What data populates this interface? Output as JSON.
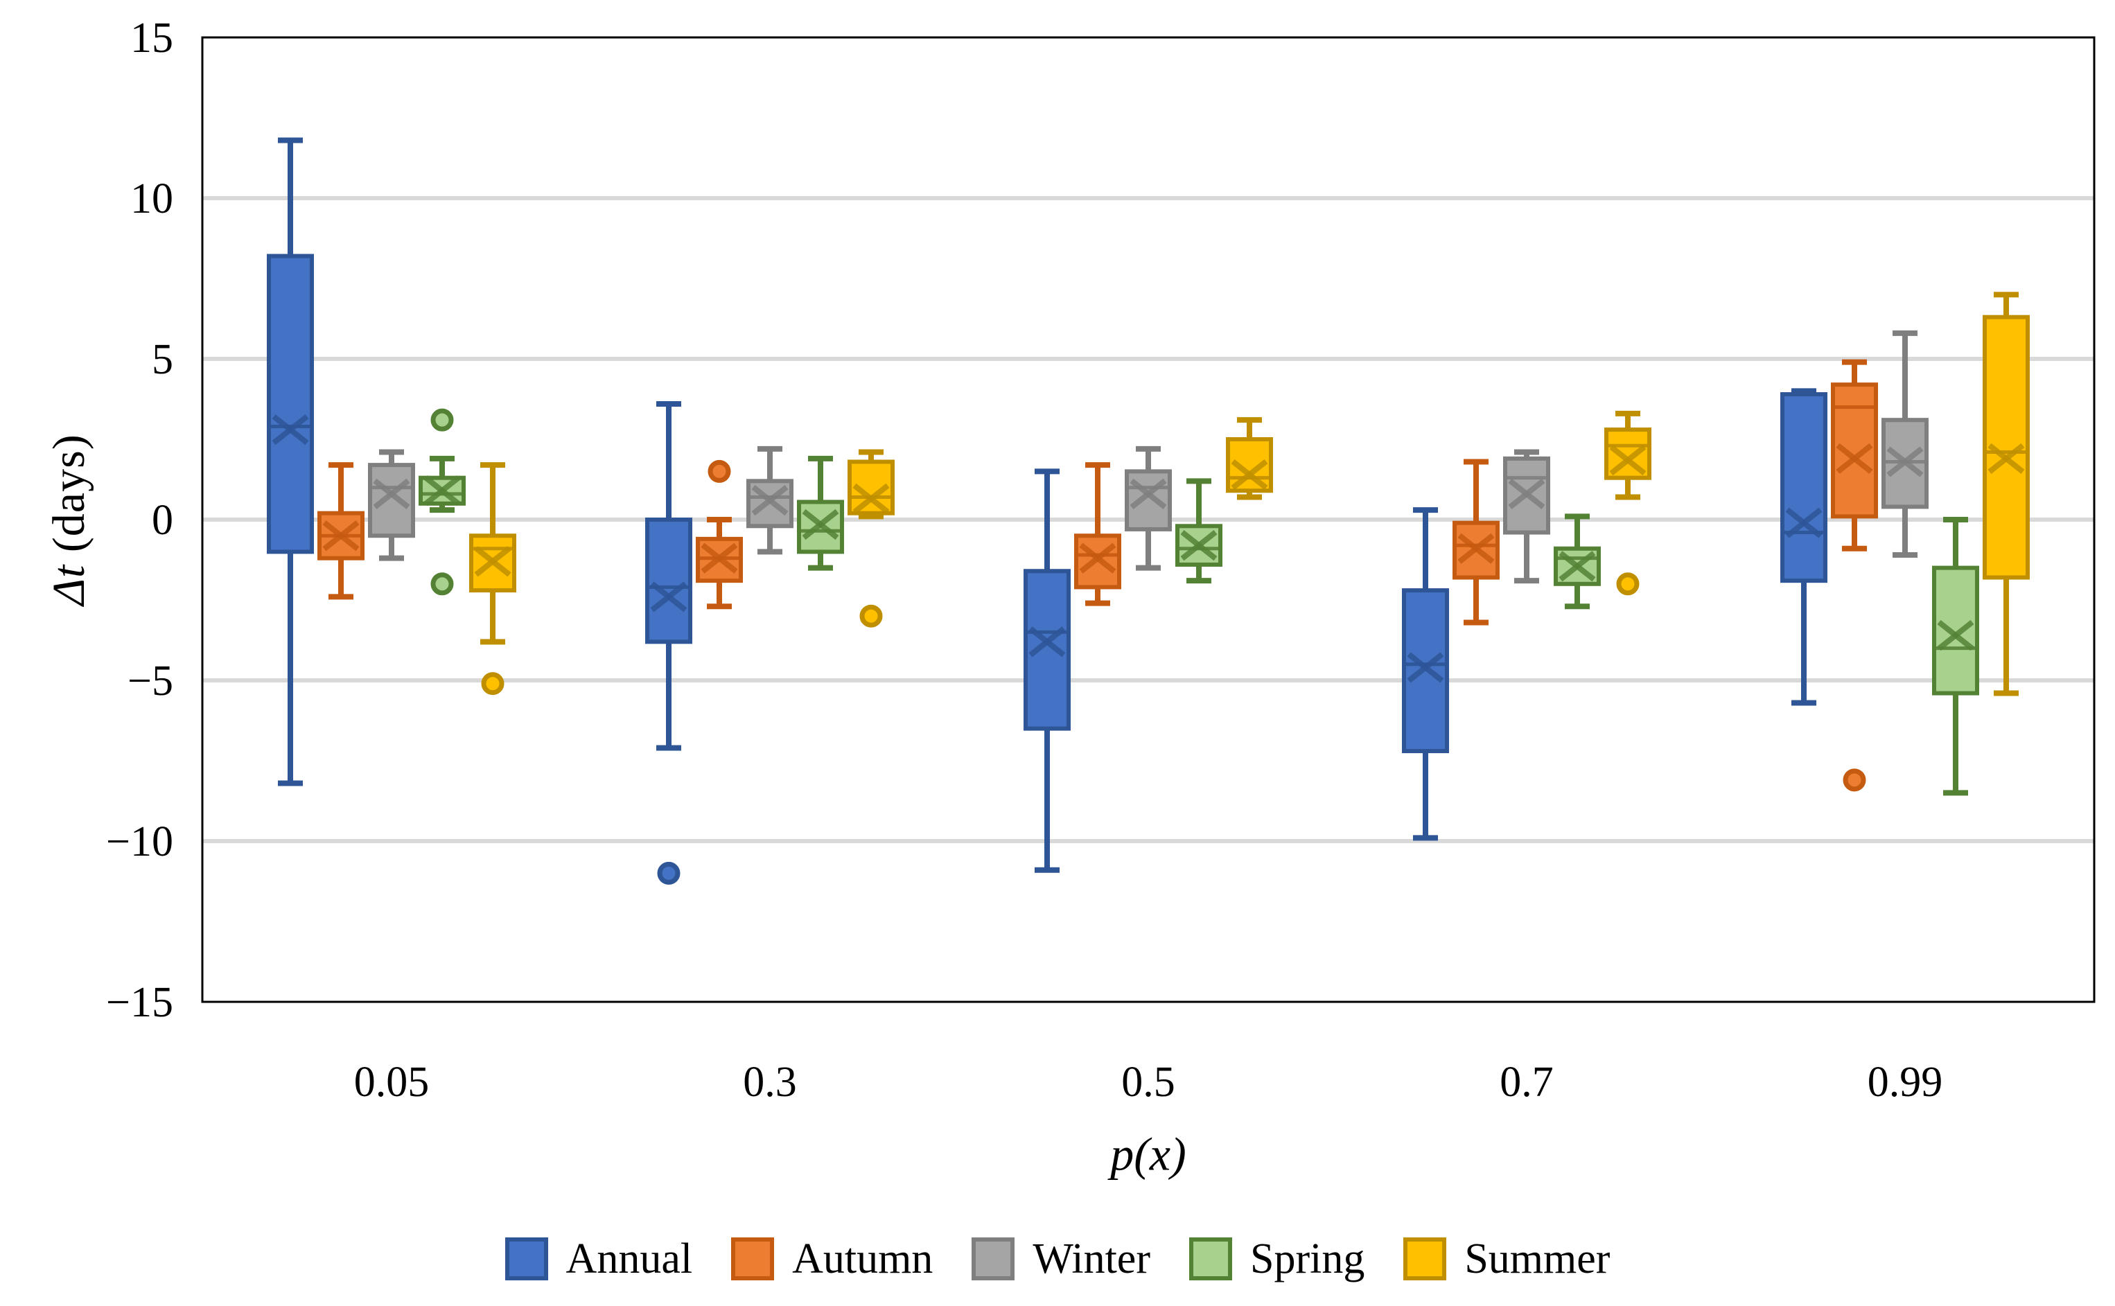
{
  "chart_data": {
    "type": "box",
    "title": "",
    "xlabel": "p(x)",
    "ylabel": "Δt (days)",
    "ylabel_parts": {
      "italic_part": "Δt",
      "rest_part": " (days)"
    },
    "ylim": [
      -15,
      15
    ],
    "yticks": [
      {
        "value": 15,
        "label": "15"
      },
      {
        "value": 10,
        "label": "10"
      },
      {
        "value": 5,
        "label": "5"
      },
      {
        "value": 0,
        "label": "0"
      },
      {
        "value": -5,
        "label": "−5"
      },
      {
        "value": -10,
        "label": "−10"
      },
      {
        "value": -15,
        "label": "−15"
      }
    ],
    "grid": "horizontal",
    "legend_position": "bottom",
    "categories": [
      "0.05",
      "0.3",
      "0.5",
      "0.7",
      "0.99"
    ],
    "colors": {
      "background": "#FFFFFF",
      "frame": "#000000",
      "gridline": "#D9D9D9",
      "text": "#000000"
    },
    "series": [
      {
        "name": "Annual",
        "fill": "#4472C4",
        "border": "#2E5596",
        "boxes": [
          {
            "whisker_low": -8.2,
            "q1": -1.0,
            "median": 2.9,
            "mean": 2.8,
            "q3": 8.2,
            "whisker_high": 11.8,
            "outliers": []
          },
          {
            "whisker_low": -7.1,
            "q1": -3.8,
            "median": -2.1,
            "mean": -2.4,
            "q3": 0.0,
            "whisker_high": 3.6,
            "outliers": [
              -11.0
            ]
          },
          {
            "whisker_low": -10.9,
            "q1": -6.5,
            "median": -3.5,
            "mean": -3.8,
            "q3": -1.6,
            "whisker_high": 1.5,
            "outliers": []
          },
          {
            "whisker_low": -9.9,
            "q1": -7.2,
            "median": -4.5,
            "mean": -4.6,
            "q3": -2.2,
            "whisker_high": 0.3,
            "outliers": []
          },
          {
            "whisker_low": -5.7,
            "q1": -1.9,
            "median": -0.4,
            "mean": -0.1,
            "q3": 3.9,
            "whisker_high": 4.0,
            "outliers": []
          }
        ]
      },
      {
        "name": "Autumn",
        "fill": "#ED7D31",
        "border": "#C55A11",
        "boxes": [
          {
            "whisker_low": -2.4,
            "q1": -1.2,
            "median": -0.5,
            "mean": -0.5,
            "q3": 0.2,
            "whisker_high": 1.7,
            "outliers": []
          },
          {
            "whisker_low": -2.7,
            "q1": -1.9,
            "median": -1.2,
            "mean": -1.2,
            "q3": -0.6,
            "whisker_high": 0.0,
            "outliers": [
              1.5
            ]
          },
          {
            "whisker_low": -2.6,
            "q1": -2.1,
            "median": -1.1,
            "mean": -1.2,
            "q3": -0.5,
            "whisker_high": 1.7,
            "outliers": []
          },
          {
            "whisker_low": -3.2,
            "q1": -1.8,
            "median": -0.8,
            "mean": -0.9,
            "q3": -0.1,
            "whisker_high": 1.8,
            "outliers": []
          },
          {
            "whisker_low": -0.9,
            "q1": 0.1,
            "median": 3.5,
            "mean": 1.9,
            "q3": 4.2,
            "whisker_high": 4.9,
            "outliers": [
              -8.1
            ]
          }
        ]
      },
      {
        "name": "Winter",
        "fill": "#A5A5A5",
        "border": "#7F7F7F",
        "boxes": [
          {
            "whisker_low": -1.2,
            "q1": -0.5,
            "median": 1.0,
            "mean": 0.8,
            "q3": 1.7,
            "whisker_high": 2.1,
            "outliers": []
          },
          {
            "whisker_low": -1.0,
            "q1": -0.2,
            "median": 0.7,
            "mean": 0.6,
            "q3": 1.2,
            "whisker_high": 2.2,
            "outliers": []
          },
          {
            "whisker_low": -1.5,
            "q1": -0.3,
            "median": 1.0,
            "mean": 0.8,
            "q3": 1.5,
            "whisker_high": 2.2,
            "outliers": []
          },
          {
            "whisker_low": -1.9,
            "q1": -0.4,
            "median": 1.3,
            "mean": 0.8,
            "q3": 1.9,
            "whisker_high": 2.1,
            "outliers": []
          },
          {
            "whisker_low": -1.1,
            "q1": 0.4,
            "median": 1.8,
            "mean": 1.8,
            "q3": 3.1,
            "whisker_high": 5.8,
            "outliers": []
          }
        ]
      },
      {
        "name": "Spring",
        "fill": "#A9D18E",
        "border": "#548235",
        "boxes": [
          {
            "whisker_low": 0.3,
            "q1": 0.5,
            "median": 0.8,
            "mean": 0.9,
            "q3": 1.3,
            "whisker_high": 1.9,
            "outliers": [
              3.1,
              -2.0
            ]
          },
          {
            "whisker_low": -1.5,
            "q1": -1.0,
            "median": -0.35,
            "mean": -0.15,
            "q3": 0.55,
            "whisker_high": 1.9,
            "outliers": []
          },
          {
            "whisker_low": -1.9,
            "q1": -1.4,
            "median": -0.9,
            "mean": -0.8,
            "q3": -0.2,
            "whisker_high": 1.2,
            "outliers": []
          },
          {
            "whisker_low": -2.7,
            "q1": -2.0,
            "median": -1.2,
            "mean": -1.45,
            "q3": -0.9,
            "whisker_high": 0.1,
            "outliers": []
          },
          {
            "whisker_low": -8.5,
            "q1": -5.4,
            "median": -4.0,
            "mean": -3.6,
            "q3": -1.5,
            "whisker_high": 0.0,
            "outliers": []
          }
        ]
      },
      {
        "name": "Summer",
        "fill": "#FFC000",
        "border": "#BF8F00",
        "boxes": [
          {
            "whisker_low": -3.8,
            "q1": -2.2,
            "median": -0.9,
            "mean": -1.3,
            "q3": -0.5,
            "whisker_high": 1.7,
            "outliers": [
              -5.1
            ]
          },
          {
            "whisker_low": 0.1,
            "q1": 0.2,
            "median": 0.7,
            "mean": 0.65,
            "q3": 1.8,
            "whisker_high": 2.1,
            "outliers": [
              -3.0
            ]
          },
          {
            "whisker_low": 0.7,
            "q1": 0.9,
            "median": 1.3,
            "mean": 1.4,
            "q3": 2.5,
            "whisker_high": 3.1,
            "outliers": []
          },
          {
            "whisker_low": 0.7,
            "q1": 1.3,
            "median": 2.3,
            "mean": 1.85,
            "q3": 2.8,
            "whisker_high": 3.3,
            "outliers": [
              -2.0
            ]
          },
          {
            "whisker_low": -5.4,
            "q1": -1.8,
            "median": 2.1,
            "mean": 1.9,
            "q3": 6.3,
            "whisker_high": 7.0,
            "outliers": []
          }
        ]
      }
    ]
  }
}
